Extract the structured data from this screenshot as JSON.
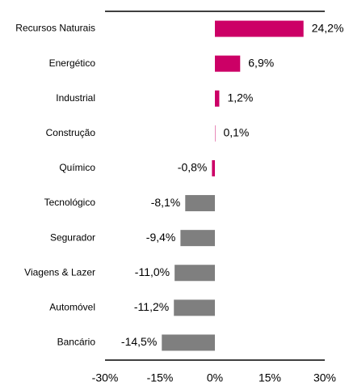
{
  "chart_data": {
    "type": "bar",
    "orientation": "horizontal",
    "categories": [
      "Recursos Naturais",
      "Energético",
      "Industrial",
      "Construção",
      "Químico",
      "Tecnológico",
      "Segurador",
      "Viagens & Lazer",
      "Automóvel",
      "Bancário"
    ],
    "values": [
      24.2,
      6.9,
      1.2,
      0.1,
      -0.8,
      -8.1,
      -9.4,
      -11.0,
      -11.2,
      -14.5
    ],
    "value_labels": [
      "24,2%",
      "6,9%",
      "1,2%",
      "0,1%",
      "-0,8%",
      "-8,1%",
      "-9,4%",
      "-11,0%",
      "-11,2%",
      "-14,5%"
    ],
    "colors": [
      "#cc0066",
      "#cc0066",
      "#cc0066",
      "#cc0066",
      "#cc0066",
      "#7f7f7f",
      "#7f7f7f",
      "#7f7f7f",
      "#7f7f7f",
      "#7f7f7f"
    ],
    "xlim": [
      -30,
      30
    ],
    "xticks": [
      {
        "value": -30,
        "label": "-30%"
      },
      {
        "value": -15,
        "label": "-15%"
      },
      {
        "value": 0,
        "label": "0%"
      },
      {
        "value": 15,
        "label": "15%"
      },
      {
        "value": 30,
        "label": "30%"
      }
    ],
    "grid": false
  }
}
